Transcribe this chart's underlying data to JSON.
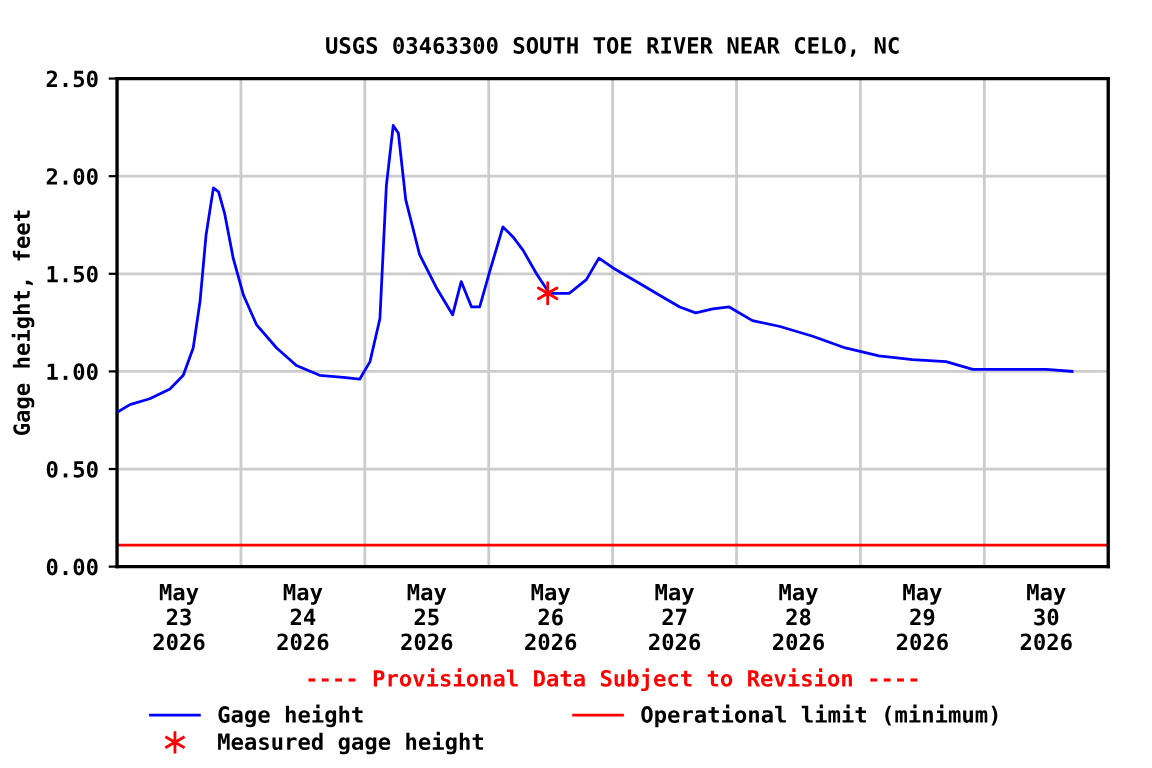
{
  "chart_data": {
    "type": "line",
    "title": "USGS 03463300 SOUTH TOE RIVER NEAR CELO, NC",
    "ylabel": "Gage height, feet",
    "annotations": [
      "---- Provisional Data Subject to Revision ----"
    ],
    "series": [
      {
        "name": "Gage height",
        "color": "#0000ff",
        "marker": "none",
        "x": [
          "2026-05-23T00:00",
          "2026-05-23T02:30",
          "2026-05-23T06:20",
          "2026-05-23T10:15",
          "2026-05-23T12:50",
          "2026-05-23T14:45",
          "2026-05-23T16:05",
          "2026-05-23T17:15",
          "2026-05-23T18:40",
          "2026-05-23T19:40",
          "2026-05-23T20:50",
          "2026-05-23T22:30",
          "2026-05-24T00:30",
          "2026-05-24T03:00",
          "2026-05-24T06:55",
          "2026-05-24T10:45",
          "2026-05-24T15:15",
          "2026-05-24T19:50",
          "2026-05-24T23:00",
          "2026-05-25T01:00",
          "2026-05-25T02:55",
          "2026-05-25T04:10",
          "2026-05-25T05:30",
          "2026-05-25T06:30",
          "2026-05-25T07:55",
          "2026-05-25T10:35",
          "2026-05-25T13:50",
          "2026-05-25T17:00",
          "2026-05-25T18:40",
          "2026-05-25T20:40",
          "2026-05-25T22:15",
          "2026-05-26T00:10",
          "2026-05-26T02:45",
          "2026-05-26T04:40",
          "2026-05-26T06:40",
          "2026-05-26T09:15",
          "2026-05-26T11:45",
          "2026-05-26T15:35",
          "2026-05-26T18:55",
          "2026-05-26T21:20",
          "2026-05-27T00:05",
          "2026-05-27T05:15",
          "2026-05-27T09:45",
          "2026-05-27T13:00",
          "2026-05-27T16:05",
          "2026-05-27T19:25",
          "2026-05-27T22:35",
          "2026-05-28T03:05",
          "2026-05-28T08:25",
          "2026-05-28T14:45",
          "2026-05-28T21:05",
          "2026-05-29T03:35",
          "2026-05-29T10:05",
          "2026-05-29T16:35",
          "2026-05-29T21:45",
          "2026-05-30T04:20",
          "2026-05-30T12:00",
          "2026-05-30T17:00"
        ],
        "values": [
          0.79,
          0.83,
          0.86,
          0.91,
          0.98,
          1.12,
          1.36,
          1.7,
          1.94,
          1.92,
          1.81,
          1.58,
          1.39,
          1.24,
          1.12,
          1.03,
          0.98,
          0.97,
          0.96,
          1.05,
          1.27,
          1.95,
          2.26,
          2.22,
          1.88,
          1.6,
          1.43,
          1.29,
          1.46,
          1.33,
          1.33,
          1.51,
          1.74,
          1.69,
          1.62,
          1.5,
          1.4,
          1.4,
          1.47,
          1.58,
          1.53,
          1.45,
          1.38,
          1.33,
          1.3,
          1.32,
          1.33,
          1.26,
          1.23,
          1.18,
          1.12,
          1.08,
          1.06,
          1.05,
          1.01,
          1.01,
          1.01,
          1.0
        ]
      },
      {
        "name": "Measured gage height",
        "type": "scatter",
        "color": "#ff0000",
        "marker": "cross",
        "x": [
          "2026-05-26T11:25"
        ],
        "values": [
          1.4
        ]
      }
    ],
    "ref_lines": [
      {
        "axis": "y",
        "value": 0.11,
        "label": "Operational limit (minimum)",
        "color": "#ff0000",
        "line_style": "solid"
      }
    ],
    "xlim": [
      "2026-05-23",
      "2026-05-31"
    ],
    "xticks": [
      {
        "value": "2026-05-23",
        "label": null
      },
      {
        "value": "2026-05-23T12:00",
        "label": "May\n23\n2026"
      },
      {
        "value": "2026-05-24",
        "label": null
      },
      {
        "value": "2026-05-24T12:00",
        "label": "May\n24\n2026"
      },
      {
        "value": "2026-05-25",
        "label": null
      },
      {
        "value": "2026-05-25T12:00",
        "label": "May\n25\n2026"
      },
      {
        "value": "2026-05-26",
        "label": null
      },
      {
        "value": "2026-05-26T12:00",
        "label": "May\n26\n2026"
      },
      {
        "value": "2026-05-27",
        "label": null
      },
      {
        "value": "2026-05-27T12:00",
        "label": "May\n27\n2026"
      },
      {
        "value": "2026-05-28",
        "label": null
      },
      {
        "value": "2026-05-28T12:00",
        "label": "May\n28\n2026"
      },
      {
        "value": "2026-05-29",
        "label": null
      },
      {
        "value": "2026-05-29T12:00",
        "label": "May\n29\n2026"
      },
      {
        "value": "2026-05-30",
        "label": null
      },
      {
        "value": "2026-05-30T12:00",
        "label": "May\n30\n2026"
      },
      {
        "value": "2026-05-31",
        "label": null
      }
    ],
    "ylim": [
      0,
      2.5
    ],
    "yticks": [
      {
        "value": 0,
        "label": "0.00"
      },
      {
        "value": 0.5,
        "label": "0.50"
      },
      {
        "value": 1,
        "label": "1.00"
      },
      {
        "value": 1.5,
        "label": "1.50"
      },
      {
        "value": 2,
        "label": "2.00"
      },
      {
        "value": 2.5,
        "label": "2.50"
      }
    ],
    "grid": true,
    "legend": "bottom"
  }
}
